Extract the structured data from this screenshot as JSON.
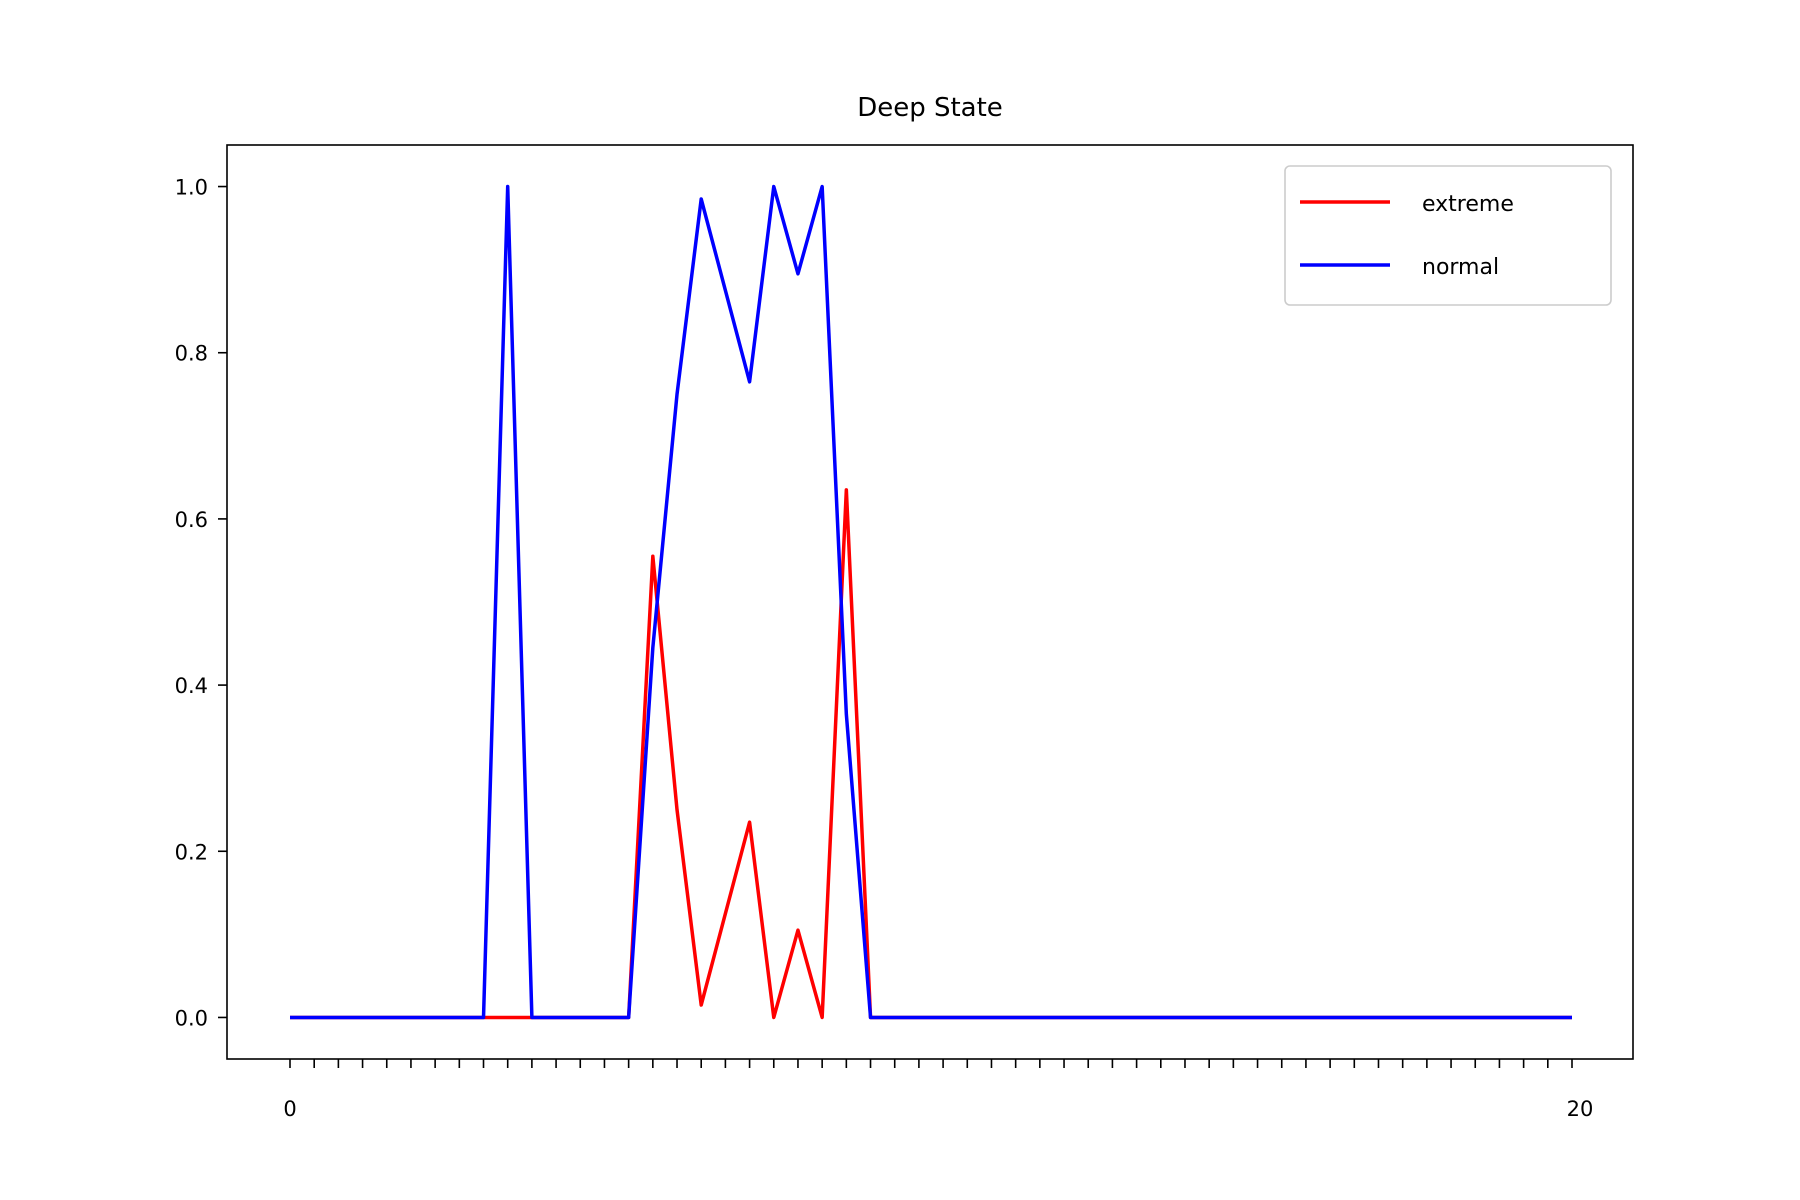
{
  "chart_data": {
    "type": "line",
    "title": "Deep State",
    "xlabel": "",
    "ylabel": "",
    "ylim": [
      -0.05,
      1.05
    ],
    "yticks": [
      "0.0",
      "0.2",
      "0.4",
      "0.6",
      "0.8",
      "1.0"
    ],
    "grid": false,
    "legend_position": "top-right",
    "x_tick_labels_note": "53 overlapping date-like tick labels, illegible",
    "first_tick_label": "0",
    "last_tick_label": "20",
    "series": [
      {
        "name": "extreme",
        "color": "#ff0000",
        "values": [
          0,
          0,
          0,
          0,
          0,
          0,
          0,
          0,
          0,
          0,
          0,
          0,
          0,
          0,
          0,
          0.555,
          0.25,
          0.015,
          0.125,
          0.235,
          0,
          0.105,
          0,
          0.635,
          0,
          0,
          0,
          0,
          0,
          0,
          0,
          0,
          0,
          0,
          0,
          0,
          0,
          0,
          0,
          0,
          0,
          0,
          0,
          0,
          0,
          0,
          0,
          0,
          0,
          0,
          0,
          0,
          0,
          0
        ]
      },
      {
        "name": "normal",
        "color": "#0000ff",
        "values": [
          0,
          0,
          0,
          0,
          0,
          0,
          0,
          0,
          0,
          1.0,
          0,
          0,
          0,
          0,
          0,
          0.445,
          0.75,
          0.985,
          0.875,
          0.765,
          1.0,
          0.895,
          1.0,
          0.365,
          0,
          0,
          0,
          0,
          0,
          0,
          0,
          0,
          0,
          0,
          0,
          0,
          0,
          0,
          0,
          0,
          0,
          0,
          0,
          0,
          0,
          0,
          0,
          0,
          0,
          0,
          0,
          0,
          0,
          0
        ]
      }
    ]
  }
}
